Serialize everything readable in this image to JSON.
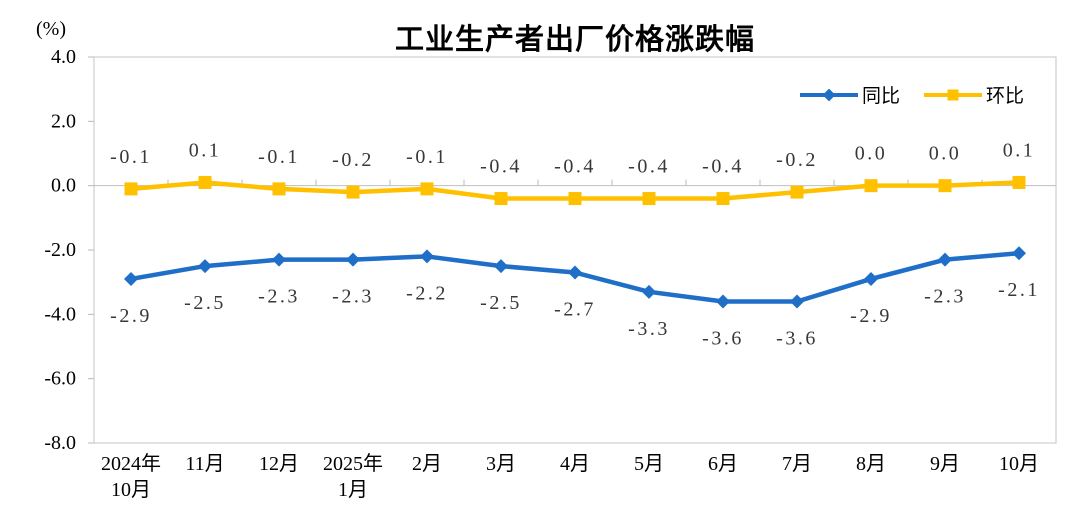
{
  "chart_data": {
    "type": "line",
    "title": "工业生产者出厂价格涨跌幅",
    "unit": "(%)",
    "categories": [
      [
        "2024年",
        "10月"
      ],
      [
        "11月"
      ],
      [
        "12月"
      ],
      [
        "2025年",
        "1月"
      ],
      [
        "2月"
      ],
      [
        "3月"
      ],
      [
        "4月"
      ],
      [
        "5月"
      ],
      [
        "6月"
      ],
      [
        "7月"
      ],
      [
        "8月"
      ],
      [
        "9月"
      ],
      [
        "10月"
      ]
    ],
    "series": [
      {
        "name": "同比",
        "color": "#1F6EC8",
        "marker": "diamond",
        "label_position": "below",
        "values": [
          -2.9,
          -2.5,
          -2.3,
          -2.3,
          -2.2,
          -2.5,
          -2.7,
          -3.3,
          -3.6,
          -3.6,
          -2.9,
          -2.3,
          -2.1
        ],
        "labels": [
          "-2.9",
          "-2.5",
          "-2.3",
          "-2.3",
          "-2.2",
          "-2.5",
          "-2.7",
          "-3.3",
          "-3.6",
          "-3.6",
          "-2.9",
          "-2.3",
          "-2.1"
        ]
      },
      {
        "name": "环比",
        "color": "#FFC000",
        "marker": "square",
        "label_position": "above",
        "values": [
          -0.1,
          0.1,
          -0.1,
          -0.2,
          -0.1,
          -0.4,
          -0.4,
          -0.4,
          -0.4,
          -0.2,
          0.0,
          0.0,
          0.1
        ],
        "labels": [
          "-0.1",
          "0.1",
          "-0.1",
          "-0.2",
          "-0.1",
          "-0.4",
          "-0.4",
          "-0.4",
          "-0.4",
          "-0.2",
          "0.0",
          "0.0",
          "0.1"
        ]
      }
    ],
    "ylim": [
      -8.0,
      4.0
    ],
    "ytick_values": [
      4,
      2,
      0,
      -2,
      -4,
      -6,
      -8
    ],
    "ytick_labels": [
      "4.0",
      "2.0",
      "0.0",
      "-2.0",
      "-4.0",
      "-6.0",
      "-8.0"
    ],
    "grid": false,
    "legend_position": "top-right",
    "frame_color": "#C5C5C5",
    "tick_color": "#B9B9B9",
    "zero_line_color": "#BFBFBF",
    "axis_text_color": "#000000",
    "data_label_color": "#383838"
  }
}
